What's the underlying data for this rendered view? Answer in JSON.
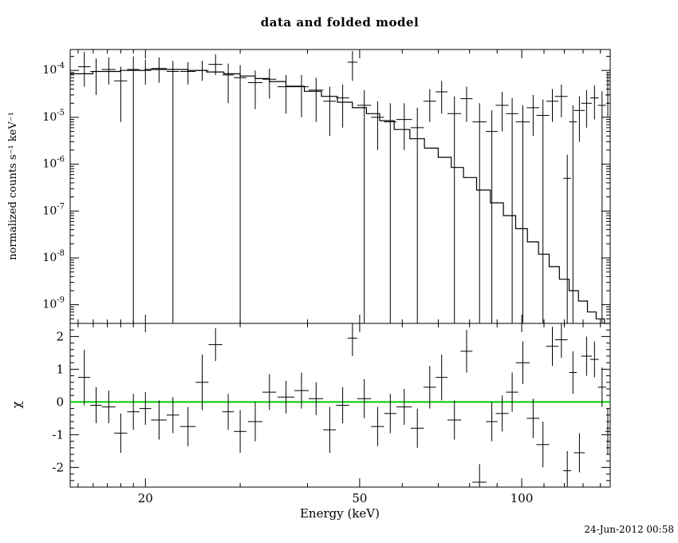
{
  "timestamp": "24-Jun-2012 00:58",
  "chart_data": {
    "type": "scatter",
    "title": "data and folded model",
    "xlabel": "Energy (keV)",
    "xscale": "log",
    "panels": [
      {
        "name": "spectrum",
        "ylabel": "normalized counts s⁻¹ keV⁻¹",
        "yscale": "log",
        "xlim": [
          14.5,
          146
        ],
        "ylim": [
          4e-10,
          0.00028
        ],
        "xticks": [
          20,
          50,
          100
        ],
        "xticks_minor": [
          15,
          16,
          17,
          18,
          19,
          30,
          40,
          60,
          70,
          80,
          90,
          110,
          120,
          130,
          140
        ],
        "ytick_exponents": [
          -4,
          -5,
          -6,
          -7,
          -8,
          -9
        ],
        "model": {
          "x": [
            15,
            17,
            19,
            21,
            23,
            25,
            27,
            29,
            31,
            33,
            35,
            38,
            41,
            44,
            47,
            50,
            53,
            56,
            60,
            64,
            68,
            72,
            76,
            80,
            85,
            90,
            95,
            100,
            105,
            110,
            115,
            120,
            125,
            130,
            135,
            140,
            145
          ],
          "y": [
            8.5e-05,
            9.5e-05,
            0.0001,
            0.000105,
            0.000105,
            0.0001,
            9.3e-05,
            8.5e-05,
            7.6e-05,
            6.7e-05,
            5.8e-05,
            4.6e-05,
            3.6e-05,
            2.8e-05,
            2.1e-05,
            1.6e-05,
            1.2e-05,
            8.5e-06,
            5.5e-06,
            3.5e-06,
            2.2e-06,
            1.4e-06,
            8.5e-07,
            5.2e-07,
            2.8e-07,
            1.5e-07,
            8e-08,
            4.2e-08,
            2.2e-08,
            1.2e-08,
            6.5e-09,
            3.5e-09,
            2e-09,
            1.2e-09,
            7e-10,
            5e-10,
            4e-10
          ]
        }
      },
      {
        "name": "residuals",
        "ylabel": "χ",
        "ylim": [
          -2.6,
          2.4
        ],
        "yticks": [
          -2,
          -1,
          0,
          1,
          2
        ],
        "zero_line": {
          "y": 0,
          "color": "#00c800"
        }
      }
    ],
    "points": {
      "columns": [
        "x",
        "xerr",
        "y",
        "y_lo",
        "y_hi",
        "chi",
        "chi_err"
      ],
      "rows": [
        [
          15.4,
          0.4,
          0.00012,
          4.5e-05,
          0.00025,
          0.75,
          0.85
        ],
        [
          16.2,
          0.4,
          9.5e-05,
          3e-05,
          0.00018,
          -0.1,
          0.55
        ],
        [
          17.1,
          0.5,
          0.000105,
          5e-05,
          0.00019,
          -0.15,
          0.5
        ],
        [
          18.0,
          0.5,
          6e-05,
          8e-06,
          0.00012,
          -0.95,
          0.6
        ],
        [
          19.0,
          0.5,
          0.000105,
          0,
          0.0002,
          -0.3,
          0.55
        ],
        [
          20.0,
          0.5,
          0.0001,
          5e-05,
          0.00017,
          -0.2,
          0.5
        ],
        [
          21.2,
          0.7,
          0.00011,
          5.5e-05,
          0.00019,
          -0.55,
          0.6
        ],
        [
          22.5,
          0.6,
          9.5e-05,
          0,
          0.00016,
          -0.4,
          0.55
        ],
        [
          24.0,
          0.8,
          9.5e-05,
          5e-05,
          0.00015,
          -0.75,
          0.6
        ],
        [
          25.5,
          0.7,
          0.0001,
          6e-05,
          0.00016,
          0.6,
          0.85
        ],
        [
          27.0,
          0.8,
          0.000135,
          8e-05,
          0.00022,
          1.75,
          0.5
        ],
        [
          28.5,
          0.7,
          8e-05,
          2e-05,
          0.00014,
          -0.3,
          0.55
        ],
        [
          30.0,
          0.8,
          7e-05,
          0,
          0.00013,
          -0.9,
          0.65
        ],
        [
          32.0,
          1.0,
          5.5e-05,
          1.5e-05,
          0.0001,
          -0.6,
          0.6
        ],
        [
          34.0,
          1.0,
          6.5e-05,
          2.5e-05,
          0.00011,
          0.3,
          0.55
        ],
        [
          36.5,
          1.3,
          4.5e-05,
          1.2e-05,
          8e-05,
          0.15,
          0.5
        ],
        [
          39.0,
          1.2,
          4.5e-05,
          1e-05,
          8e-05,
          0.35,
          0.55
        ],
        [
          41.5,
          1.3,
          3.8e-05,
          8e-06,
          7e-05,
          0.1,
          0.5
        ],
        [
          44.0,
          1.2,
          2.2e-05,
          4e-06,
          4.5e-05,
          -0.85,
          0.7
        ],
        [
          46.5,
          1.3,
          2.6e-05,
          6e-06,
          5e-05,
          -0.1,
          0.55
        ],
        [
          48.5,
          1.0,
          0.00015,
          6e-05,
          0.00026,
          1.95,
          0.55
        ],
        [
          51.0,
          1.5,
          1.8e-05,
          0,
          3.8e-05,
          0.1,
          0.6
        ],
        [
          54.0,
          1.5,
          1e-05,
          2e-06,
          2.2e-05,
          -0.75,
          0.6
        ],
        [
          57.0,
          1.5,
          8e-06,
          0,
          2e-05,
          -0.35,
          0.6
        ],
        [
          60.5,
          2.0,
          9e-06,
          2e-06,
          2e-05,
          -0.15,
          0.55
        ],
        [
          64.0,
          1.8,
          6e-06,
          0,
          1.6e-05,
          -0.8,
          0.6
        ],
        [
          67.5,
          1.8,
          2.2e-05,
          8e-06,
          4e-05,
          0.45,
          0.65
        ],
        [
          71.0,
          1.8,
          3.5e-05,
          1.2e-05,
          6e-05,
          0.75,
          0.7
        ],
        [
          75.0,
          2.2,
          1.2e-05,
          0,
          2.8e-05,
          -0.55,
          0.6
        ],
        [
          79.0,
          2.0,
          2.5e-05,
          8e-06,
          4.5e-05,
          1.55,
          0.65
        ],
        [
          83.5,
          2.5,
          8e-06,
          0,
          2e-05,
          -2.45,
          0.55
        ],
        [
          88.0,
          2.2,
          5e-06,
          0,
          1.4e-05,
          -0.6,
          0.6
        ],
        [
          92.0,
          2.5,
          1.8e-05,
          5e-06,
          3.5e-05,
          -0.35,
          0.55
        ],
        [
          96.0,
          2.5,
          1.2e-05,
          0,
          2.6e-05,
          0.3,
          0.6
        ],
        [
          100.5,
          3.0,
          8e-06,
          0,
          1.8e-05,
          1.2,
          0.65
        ],
        [
          105.0,
          2.8,
          1.6e-05,
          4e-06,
          3e-05,
          -0.5,
          0.6
        ],
        [
          109.5,
          3.0,
          1.1e-05,
          0,
          2.4e-05,
          -1.3,
          0.7
        ],
        [
          114.0,
          3.0,
          2.2e-05,
          8e-06,
          4e-05,
          1.7,
          0.6
        ],
        [
          118.5,
          3.2,
          2.8e-05,
          1e-05,
          5e-05,
          1.9,
          0.55
        ],
        [
          121.5,
          2.0,
          5e-07,
          0,
          1.6e-06,
          -2.1,
          0.6
        ],
        [
          124.5,
          2.0,
          8e-06,
          0,
          1.8e-05,
          0.9,
          0.65
        ],
        [
          128.0,
          3.0,
          1.4e-05,
          3e-06,
          2.8e-05,
          -1.55,
          0.6
        ],
        [
          132.0,
          3.0,
          2e-05,
          6e-06,
          3.8e-05,
          1.4,
          0.6
        ],
        [
          136.5,
          2.5,
          2.6e-05,
          9e-06,
          4.8e-05,
          1.3,
          0.55
        ],
        [
          141.0,
          2.5,
          1.8e-05,
          0,
          3.6e-05,
          0.45,
          0.6
        ],
        [
          144.5,
          1.5,
          3e-05,
          1e-05,
          9e-05,
          -0.9,
          0.7
        ]
      ]
    }
  }
}
